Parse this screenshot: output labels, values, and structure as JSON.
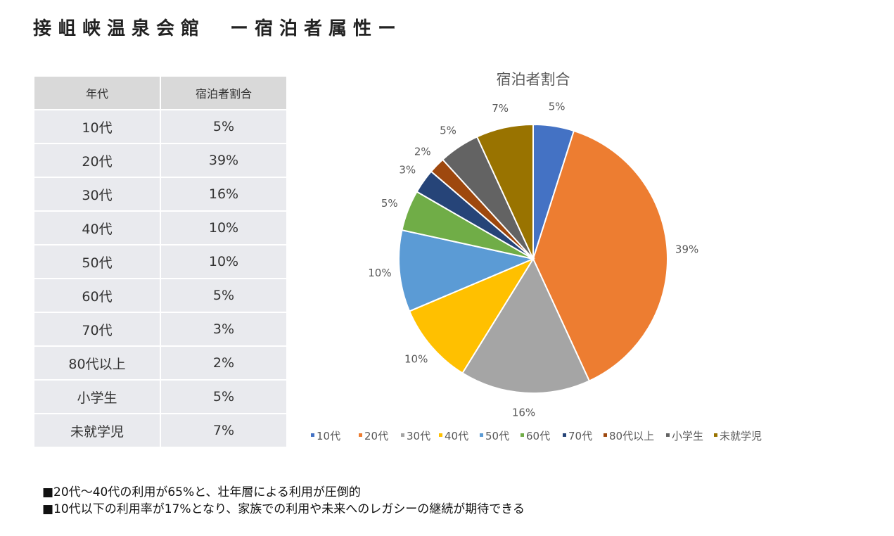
{
  "title": "接岨峡温泉会館　ー宿泊者属性ー",
  "table": {
    "headers": [
      "年代",
      "宿泊者割合"
    ],
    "rows": [
      [
        "10代",
        "5%"
      ],
      [
        "20代",
        "39%"
      ],
      [
        "30代",
        "16%"
      ],
      [
        "40代",
        "10%"
      ],
      [
        "50代",
        "10%"
      ],
      [
        "60代",
        "5%"
      ],
      [
        "70代",
        "3%"
      ],
      [
        "80代以上",
        "2%"
      ],
      [
        "小学生",
        "5%"
      ],
      [
        "未就学児",
        "7%"
      ]
    ]
  },
  "chart_data": {
    "type": "pie",
    "title": "宿泊者割合",
    "categories": [
      "10代",
      "20代",
      "30代",
      "40代",
      "50代",
      "60代",
      "70代",
      "80代以上",
      "小学生",
      "未就学児"
    ],
    "values": [
      5,
      39,
      16,
      10,
      10,
      5,
      3,
      2,
      5,
      7
    ],
    "labels": [
      "5%",
      "39%",
      "16%",
      "10%",
      "10%",
      "5%",
      "3%",
      "2%",
      "5%",
      "7%"
    ],
    "colors": [
      "#4472c4",
      "#ed7d31",
      "#a5a5a5",
      "#ffc000",
      "#5b9bd5",
      "#70ad47",
      "#264478",
      "#9e480e",
      "#636363",
      "#997300"
    ],
    "legend": "bottom"
  },
  "notes": [
    "■20代～40代の利用が65%と、壮年層による利用が圧倒的",
    "■10代以下の利用率が17%となり、家族での利用や未来へのレガシーの継続が期待できる"
  ]
}
